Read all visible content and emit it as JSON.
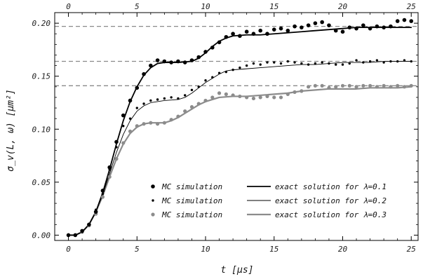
{
  "chart_data": {
    "type": "scatter",
    "xlabel": "t  [μs]",
    "ylabel": "σ_v(L, ω)  [μm²]",
    "xlim": [
      -1,
      25.5
    ],
    "ylim": [
      -0.005,
      0.21
    ],
    "x_ticks": [
      0,
      5,
      10,
      15,
      20,
      25
    ],
    "y_ticks": [
      0.0,
      0.05,
      0.1,
      0.15,
      0.2
    ],
    "x_tick_labels": [
      "0",
      "5",
      "10",
      "15",
      "20",
      "25"
    ],
    "y_tick_labels": [
      "0.00",
      "0.05",
      "0.10",
      "0.15",
      "0.20"
    ],
    "top_tick_labels": [
      "0",
      "5",
      "10",
      "15",
      "20",
      "25"
    ],
    "legend_position": "bottom-right",
    "asymptotes": [
      0.197,
      0.164,
      0.141
    ],
    "legend": [
      {
        "marker_label": "MC simulation",
        "line_label": "exact solution for λ=0.1",
        "color": "#000000"
      },
      {
        "marker_label": "MC simulation",
        "line_label": "exact solution for λ=0.2",
        "color": "#000000"
      },
      {
        "marker_label": "MC simulation",
        "line_label": "exact solution for λ=0.3",
        "color": "#8c8c8c"
      }
    ],
    "series": [
      {
        "line_label": "exact solution for λ=0.1",
        "color": "#000000",
        "line_width": 1.8,
        "marker_radius": 2.8,
        "curve": [
          [
            0,
            0
          ],
          [
            0.5,
            0
          ],
          [
            1,
            0.003
          ],
          [
            1.5,
            0.01
          ],
          [
            2,
            0.022
          ],
          [
            2.5,
            0.04
          ],
          [
            3,
            0.062
          ],
          [
            3.5,
            0.086
          ],
          [
            4,
            0.108
          ],
          [
            4.5,
            0.126
          ],
          [
            5,
            0.14
          ],
          [
            5.5,
            0.151
          ],
          [
            6,
            0.158
          ],
          [
            6.5,
            0.162
          ],
          [
            7,
            0.163
          ],
          [
            8,
            0.163
          ],
          [
            9,
            0.164
          ],
          [
            9.5,
            0.167
          ],
          [
            10,
            0.172
          ],
          [
            10.5,
            0.178
          ],
          [
            11,
            0.183
          ],
          [
            11.5,
            0.186
          ],
          [
            12,
            0.188
          ],
          [
            13,
            0.189
          ],
          [
            14,
            0.189
          ],
          [
            15,
            0.19
          ],
          [
            16,
            0.191
          ],
          [
            17,
            0.192
          ],
          [
            18,
            0.193
          ],
          [
            19,
            0.194
          ],
          [
            20,
            0.195
          ],
          [
            21,
            0.196
          ],
          [
            22,
            0.196
          ],
          [
            23,
            0.196
          ],
          [
            24,
            0.196
          ],
          [
            25,
            0.196
          ]
        ],
        "points": [
          [
            0,
            0
          ],
          [
            0.5,
            0
          ],
          [
            1,
            0.004
          ],
          [
            1.5,
            0.01
          ],
          [
            2,
            0.022
          ],
          [
            2.5,
            0.042
          ],
          [
            3,
            0.064
          ],
          [
            3.5,
            0.088
          ],
          [
            4,
            0.113
          ],
          [
            4.5,
            0.127
          ],
          [
            5,
            0.139
          ],
          [
            5.5,
            0.152
          ],
          [
            6,
            0.16
          ],
          [
            6.5,
            0.165
          ],
          [
            7,
            0.164
          ],
          [
            7.5,
            0.163
          ],
          [
            8,
            0.164
          ],
          [
            8.5,
            0.163
          ],
          [
            9,
            0.165
          ],
          [
            9.5,
            0.168
          ],
          [
            10,
            0.173
          ],
          [
            10.5,
            0.177
          ],
          [
            11,
            0.182
          ],
          [
            11.5,
            0.187
          ],
          [
            12,
            0.19
          ],
          [
            12.5,
            0.188
          ],
          [
            13,
            0.192
          ],
          [
            13.5,
            0.19
          ],
          [
            14,
            0.193
          ],
          [
            14.5,
            0.19
          ],
          [
            15,
            0.194
          ],
          [
            15.5,
            0.195
          ],
          [
            16,
            0.193
          ],
          [
            16.5,
            0.197
          ],
          [
            17,
            0.196
          ],
          [
            17.5,
            0.198
          ],
          [
            18,
            0.2
          ],
          [
            18.5,
            0.201
          ],
          [
            19,
            0.198
          ],
          [
            19.5,
            0.193
          ],
          [
            20,
            0.192
          ],
          [
            20.5,
            0.196
          ],
          [
            21,
            0.195
          ],
          [
            21.5,
            0.198
          ],
          [
            22,
            0.195
          ],
          [
            22.5,
            0.197
          ],
          [
            23,
            0.196
          ],
          [
            23.5,
            0.197
          ],
          [
            24,
            0.202
          ],
          [
            24.5,
            0.203
          ],
          [
            25,
            0.202
          ]
        ]
      },
      {
        "line_label": "exact solution for λ=0.2",
        "color": "#000000",
        "line_width": 0.9,
        "marker_radius": 1.7,
        "curve": [
          [
            0,
            0
          ],
          [
            0.5,
            0
          ],
          [
            1,
            0.003
          ],
          [
            1.5,
            0.01
          ],
          [
            2,
            0.022
          ],
          [
            2.5,
            0.038
          ],
          [
            3,
            0.058
          ],
          [
            3.5,
            0.078
          ],
          [
            4,
            0.095
          ],
          [
            4.5,
            0.108
          ],
          [
            5,
            0.117
          ],
          [
            5.5,
            0.122
          ],
          [
            6,
            0.125
          ],
          [
            7,
            0.127
          ],
          [
            8,
            0.128
          ],
          [
            8.5,
            0.13
          ],
          [
            9,
            0.134
          ],
          [
            9.5,
            0.139
          ],
          [
            10,
            0.144
          ],
          [
            10.5,
            0.148
          ],
          [
            11,
            0.152
          ],
          [
            11.5,
            0.155
          ],
          [
            12,
            0.156
          ],
          [
            13,
            0.157
          ],
          [
            14,
            0.158
          ],
          [
            15,
            0.159
          ],
          [
            16,
            0.16
          ],
          [
            17,
            0.161
          ],
          [
            18,
            0.161
          ],
          [
            19,
            0.162
          ],
          [
            20,
            0.163
          ],
          [
            21,
            0.163
          ],
          [
            22,
            0.163
          ],
          [
            23,
            0.164
          ],
          [
            24,
            0.164
          ],
          [
            25,
            0.164
          ]
        ],
        "points": [
          [
            0,
            0
          ],
          [
            0.5,
            0
          ],
          [
            1,
            0.003
          ],
          [
            1.5,
            0.01
          ],
          [
            2,
            0.024
          ],
          [
            2.5,
            0.039
          ],
          [
            3,
            0.062
          ],
          [
            3.5,
            0.083
          ],
          [
            4,
            0.103
          ],
          [
            4.5,
            0.11
          ],
          [
            5,
            0.12
          ],
          [
            5.5,
            0.124
          ],
          [
            6,
            0.127
          ],
          [
            6.5,
            0.128
          ],
          [
            7,
            0.129
          ],
          [
            7.5,
            0.13
          ],
          [
            8,
            0.129
          ],
          [
            8.5,
            0.132
          ],
          [
            9,
            0.137
          ],
          [
            9.5,
            0.14
          ],
          [
            10,
            0.146
          ],
          [
            10.5,
            0.149
          ],
          [
            11,
            0.153
          ],
          [
            11.5,
            0.154
          ],
          [
            12,
            0.156
          ],
          [
            12.5,
            0.158
          ],
          [
            13,
            0.16
          ],
          [
            13.5,
            0.162
          ],
          [
            14,
            0.161
          ],
          [
            14.5,
            0.163
          ],
          [
            15,
            0.163
          ],
          [
            15.5,
            0.162
          ],
          [
            16,
            0.164
          ],
          [
            16.5,
            0.163
          ],
          [
            17,
            0.162
          ],
          [
            17.5,
            0.161
          ],
          [
            18,
            0.162
          ],
          [
            18.5,
            0.163
          ],
          [
            19,
            0.162
          ],
          [
            19.5,
            0.161
          ],
          [
            20,
            0.161
          ],
          [
            20.5,
            0.162
          ],
          [
            21,
            0.165
          ],
          [
            21.5,
            0.163
          ],
          [
            22,
            0.164
          ],
          [
            22.5,
            0.165
          ],
          [
            23,
            0.163
          ],
          [
            23.5,
            0.164
          ],
          [
            24,
            0.164
          ],
          [
            24.5,
            0.165
          ],
          [
            25,
            0.164
          ]
        ]
      },
      {
        "line_label": "exact solution for λ=0.3",
        "color": "#8c8c8c",
        "line_width": 2.2,
        "marker_radius": 2.6,
        "curve": [
          [
            0,
            0
          ],
          [
            0.5,
            0
          ],
          [
            1,
            0.003
          ],
          [
            1.5,
            0.01
          ],
          [
            2,
            0.022
          ],
          [
            2.5,
            0.037
          ],
          [
            3,
            0.055
          ],
          [
            3.5,
            0.072
          ],
          [
            4,
            0.086
          ],
          [
            4.5,
            0.096
          ],
          [
            5,
            0.102
          ],
          [
            5.5,
            0.105
          ],
          [
            6,
            0.106
          ],
          [
            7,
            0.106
          ],
          [
            7.5,
            0.108
          ],
          [
            8,
            0.111
          ],
          [
            8.5,
            0.115
          ],
          [
            9,
            0.119
          ],
          [
            9.5,
            0.123
          ],
          [
            10,
            0.126
          ],
          [
            10.5,
            0.128
          ],
          [
            11,
            0.13
          ],
          [
            12,
            0.131
          ],
          [
            13,
            0.131
          ],
          [
            14,
            0.132
          ],
          [
            15,
            0.133
          ],
          [
            16,
            0.134
          ],
          [
            17,
            0.136
          ],
          [
            18,
            0.137
          ],
          [
            19,
            0.138
          ],
          [
            20,
            0.138
          ],
          [
            21,
            0.138
          ],
          [
            22,
            0.139
          ],
          [
            23,
            0.139
          ],
          [
            24,
            0.139
          ],
          [
            25,
            0.14
          ]
        ],
        "points": [
          [
            0,
            0
          ],
          [
            0.5,
            0
          ],
          [
            1,
            0.003
          ],
          [
            1.5,
            0.009
          ],
          [
            2,
            0.02
          ],
          [
            2.5,
            0.036
          ],
          [
            3,
            0.055
          ],
          [
            3.5,
            0.072
          ],
          [
            4,
            0.087
          ],
          [
            4.5,
            0.098
          ],
          [
            5,
            0.103
          ],
          [
            5.5,
            0.105
          ],
          [
            6,
            0.106
          ],
          [
            6.5,
            0.105
          ],
          [
            7,
            0.106
          ],
          [
            7.5,
            0.109
          ],
          [
            8,
            0.112
          ],
          [
            8.5,
            0.117
          ],
          [
            9,
            0.121
          ],
          [
            9.5,
            0.124
          ],
          [
            10,
            0.127
          ],
          [
            10.5,
            0.13
          ],
          [
            11,
            0.134
          ],
          [
            11.5,
            0.133
          ],
          [
            12,
            0.132
          ],
          [
            12.5,
            0.131
          ],
          [
            13,
            0.13
          ],
          [
            13.5,
            0.129
          ],
          [
            14,
            0.13
          ],
          [
            14.5,
            0.131
          ],
          [
            15,
            0.13
          ],
          [
            15.5,
            0.13
          ],
          [
            16,
            0.133
          ],
          [
            16.5,
            0.135
          ],
          [
            17,
            0.136
          ],
          [
            17.5,
            0.14
          ],
          [
            18,
            0.141
          ],
          [
            18.5,
            0.141
          ],
          [
            19,
            0.139
          ],
          [
            19.5,
            0.14
          ],
          [
            20,
            0.141
          ],
          [
            20.5,
            0.141
          ],
          [
            21,
            0.14
          ],
          [
            21.5,
            0.141
          ],
          [
            22,
            0.141
          ],
          [
            22.5,
            0.14
          ],
          [
            23,
            0.141
          ],
          [
            23.5,
            0.14
          ],
          [
            24,
            0.141
          ],
          [
            24.5,
            0.14
          ],
          [
            25,
            0.141
          ]
        ]
      }
    ]
  }
}
